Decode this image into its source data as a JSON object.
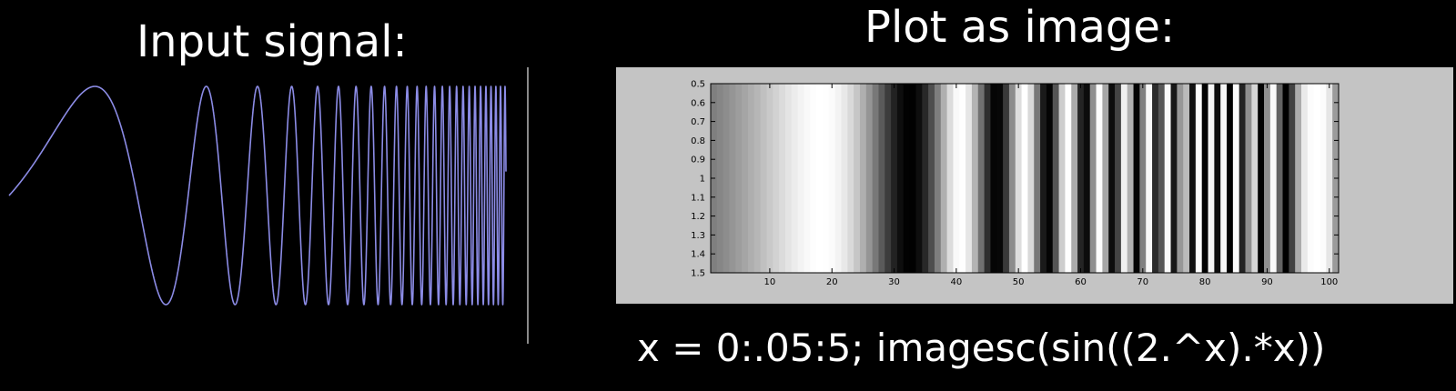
{
  "left_title": "Input signal:",
  "right_title": "Plot as image:",
  "code_caption": "x = 0:.05:5;  imagesc(sin((2.^x).*x))",
  "colors": {
    "background": "#000000",
    "signal": "#8c8ce6",
    "panel": "#c4c4c4",
    "text": "#ffffff"
  },
  "chart_data": [
    {
      "type": "line",
      "expression": "sin((2.^x).*x)",
      "x_range": [
        0,
        5
      ],
      "y_range": [
        -1,
        1
      ],
      "grid": false
    },
    {
      "type": "heatmap",
      "colormap": "gray",
      "expression": "sin((2.^x).*x)",
      "x_start": 0,
      "x_step": 0.05,
      "x_end": 5,
      "column_count": 101,
      "xlim": [
        0.5,
        101.5
      ],
      "ylim": [
        0.5,
        1.5
      ],
      "x_ticks": [
        "10",
        "20",
        "30",
        "40",
        "50",
        "60",
        "70",
        "80",
        "90",
        "100"
      ],
      "y_ticks": [
        "0.5",
        "0.6",
        "0.7",
        "0.8",
        "0.9",
        "1",
        "1.1",
        "1.2",
        "1.3",
        "1.4",
        "1.5"
      ],
      "grid": false
    }
  ]
}
